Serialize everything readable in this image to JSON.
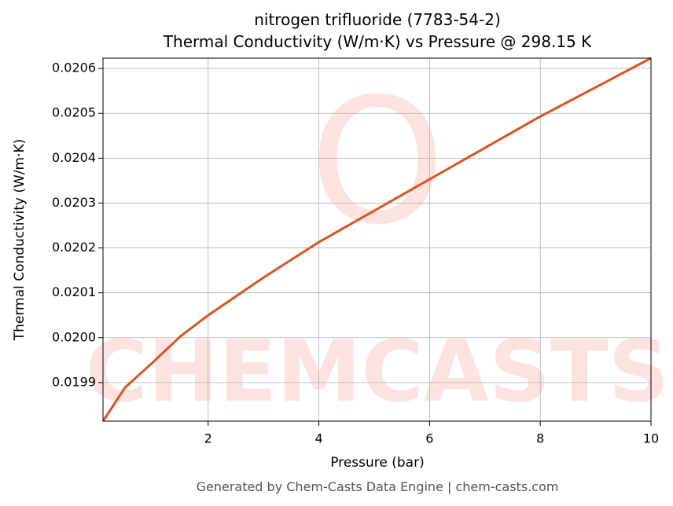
{
  "chart_data": {
    "type": "line",
    "title": "nitrogen trifluoride (7783-54-2)",
    "subtitle": "Thermal Conductivity (W/m·K) vs Pressure @ 298.15 K",
    "x_label": "Pressure (bar)",
    "y_label": "Thermal Conductivity (W/m·K)",
    "watermark": "CHEMCASTS",
    "footer": "Generated by Chem-Casts Data Engine | chem-casts.com",
    "x": [
      0.1,
      0.5,
      1,
      1.5,
      2,
      3,
      4,
      5,
      6,
      7,
      8,
      9,
      10
    ],
    "series": [
      {
        "name": "Thermal Conductivity",
        "color": "#d9541f",
        "values": [
          0.019814,
          0.019889,
          0.019945,
          0.020003,
          0.02005,
          0.020134,
          0.020213,
          0.020283,
          0.020353,
          0.020423,
          0.020493,
          0.020558,
          0.020623
        ]
      }
    ],
    "xlim": [
      0.1,
      10
    ],
    "ylim": [
      0.019814,
      0.020623
    ],
    "xticks": [
      2,
      4,
      6,
      8,
      10
    ],
    "yticks": [
      0.0199,
      {
        "value": 0.02,
        "label": "0.0200"
      },
      0.0201,
      0.0202,
      0.0203,
      0.0204,
      0.0205,
      0.0206
    ],
    "grid": true
  }
}
